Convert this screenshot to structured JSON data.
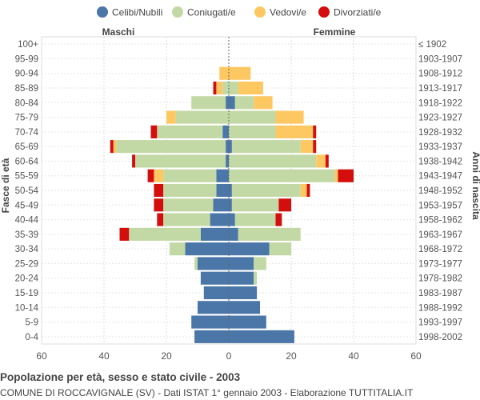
{
  "chart_data": {
    "type": "bar",
    "orientation": "horizontal-population-pyramid",
    "legend": [
      {
        "key": "celibi",
        "label": "Celibi/Nubili",
        "color": "#4a76a8"
      },
      {
        "key": "coniugati",
        "label": "Coniugati/e",
        "color": "#c3d9a5"
      },
      {
        "key": "vedovi",
        "label": "Vedovi/e",
        "color": "#fdc862"
      },
      {
        "key": "divorziati",
        "label": "Divorziati/e",
        "color": "#d40d0d"
      }
    ],
    "left_label": "Maschi",
    "right_label": "Femmine",
    "ylabel_left": "Fasce di età",
    "ylabel_right": "Anni di nascita",
    "xlim": [
      -60,
      60
    ],
    "xticks": [
      -60,
      -40,
      -20,
      0,
      20,
      40,
      60
    ],
    "xtick_labels": [
      "60",
      "40",
      "20",
      "0",
      "20",
      "40",
      "60"
    ],
    "categories": [
      "100+",
      "95-99",
      "90-94",
      "85-89",
      "80-84",
      "75-79",
      "70-74",
      "65-69",
      "60-64",
      "55-59",
      "50-54",
      "45-49",
      "40-44",
      "35-39",
      "30-34",
      "25-29",
      "20-24",
      "15-19",
      "10-14",
      "5-9",
      "0-4"
    ],
    "birth_years": [
      "≤ 1902",
      "1903-1907",
      "1908-1912",
      "1913-1917",
      "1918-1922",
      "1923-1927",
      "1928-1932",
      "1933-1937",
      "1938-1942",
      "1943-1947",
      "1948-1952",
      "1953-1957",
      "1958-1962",
      "1963-1967",
      "1968-1972",
      "1973-1977",
      "1978-1982",
      "1983-1987",
      "1988-1992",
      "1993-1997",
      "1998-2002"
    ],
    "males": {
      "celibi": [
        0,
        0,
        0,
        0,
        1,
        0,
        2,
        1,
        1,
        4,
        4,
        5,
        6,
        9,
        14,
        10,
        9,
        8,
        10,
        12,
        11
      ],
      "coniugati": [
        0,
        0,
        0,
        2,
        11,
        17,
        21,
        35,
        29,
        17,
        17,
        16,
        15,
        23,
        5,
        1,
        0,
        0,
        0,
        0,
        0
      ],
      "vedovi": [
        0,
        0,
        3,
        2,
        0,
        3,
        0,
        1,
        0,
        3,
        0,
        0,
        0,
        0,
        0,
        0,
        0,
        0,
        0,
        0,
        0
      ],
      "divorziati": [
        0,
        0,
        0,
        1,
        0,
        0,
        2,
        1,
        1,
        2,
        3,
        3,
        2,
        3,
        0,
        0,
        0,
        0,
        0,
        0,
        0
      ]
    },
    "females": {
      "celibi": [
        0,
        0,
        0,
        0,
        2,
        0,
        0,
        1,
        0,
        0,
        1,
        1,
        2,
        3,
        13,
        8,
        8,
        9,
        10,
        12,
        21
      ],
      "coniugati": [
        0,
        0,
        0,
        3,
        6,
        15,
        15,
        22,
        28,
        34,
        22,
        15,
        13,
        20,
        7,
        4,
        1,
        0,
        0,
        0,
        0
      ],
      "vedovi": [
        0,
        0,
        7,
        8,
        6,
        9,
        12,
        4,
        3,
        1,
        2,
        0,
        0,
        0,
        0,
        0,
        0,
        0,
        0,
        0,
        0
      ],
      "divorziati": [
        0,
        0,
        0,
        0,
        0,
        0,
        1,
        1,
        1,
        5,
        1,
        4,
        2,
        0,
        0,
        0,
        0,
        0,
        0,
        0,
        0
      ]
    }
  },
  "footer": {
    "title": "Popolazione per età, sesso e stato civile - 2003",
    "subtitle": "COMUNE DI ROCCAVIGNALE (SV) - Dati ISTAT 1° gennaio 2003 - Elaborazione TUTTITALIA.IT"
  }
}
